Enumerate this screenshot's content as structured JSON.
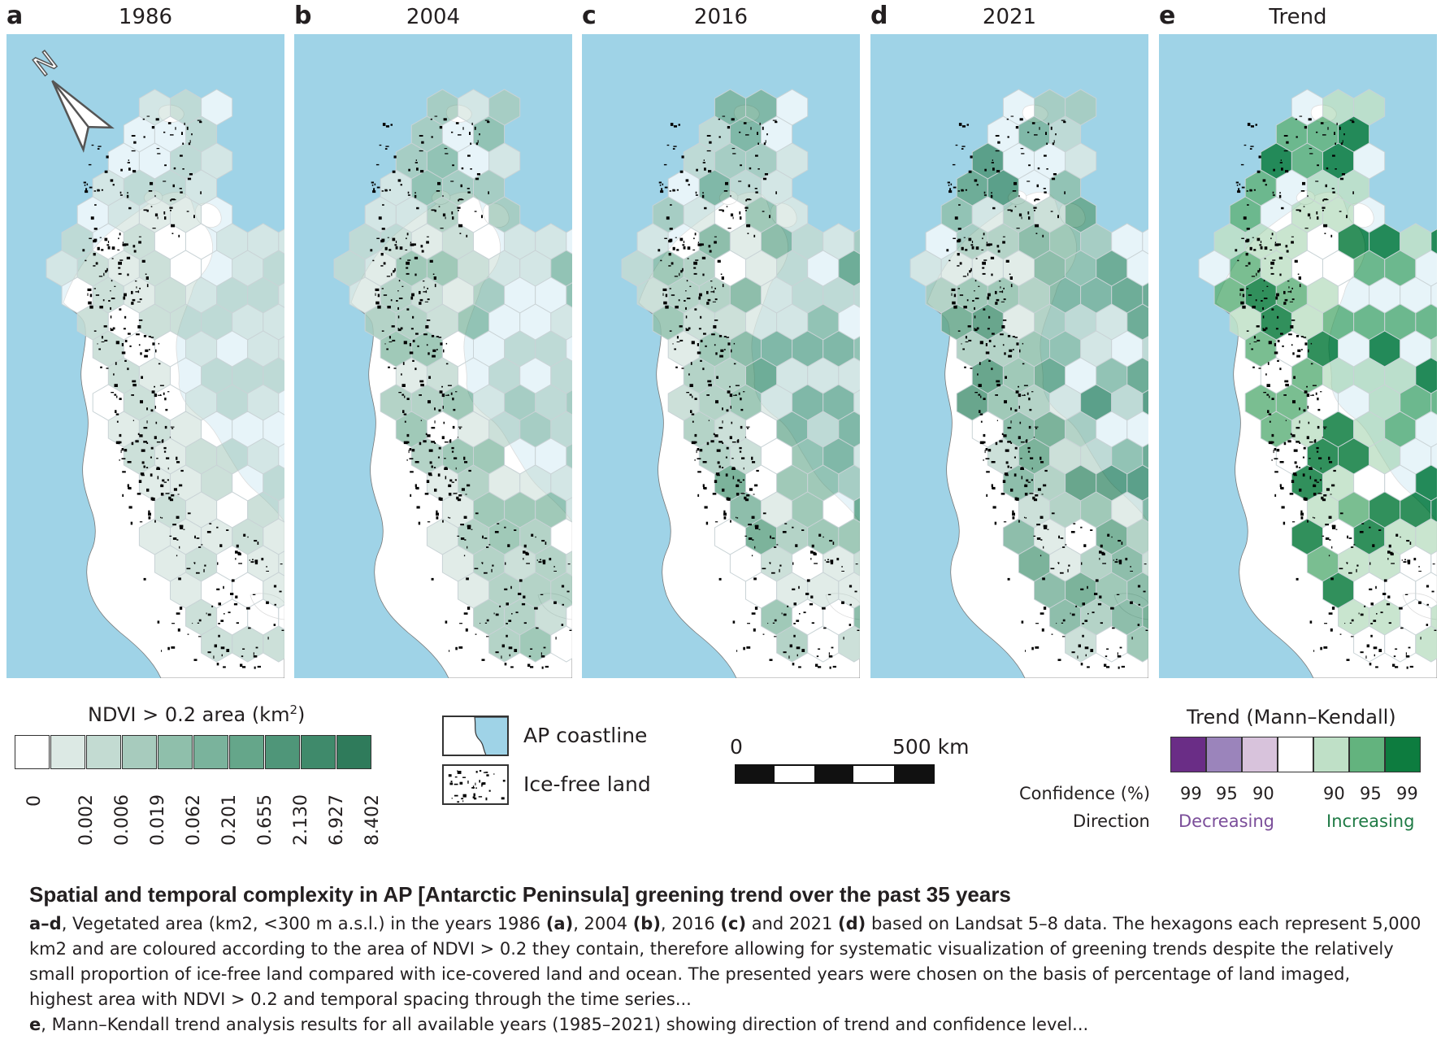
{
  "panels": [
    {
      "letter": "a",
      "year": "1986"
    },
    {
      "letter": "b",
      "year": "2004"
    },
    {
      "letter": "c",
      "year": "2016"
    },
    {
      "letter": "d",
      "year": "2021"
    },
    {
      "letter": "e",
      "year": "Trend"
    }
  ],
  "north_label": "N",
  "colors": {
    "ocean": "#9fd3e7",
    "land": "#ffffff",
    "ice_free": "#000000",
    "hex_outline": "#c9d3d6"
  },
  "ndvi_legend": {
    "title_prefix": "NDVI > 0.2 area (km",
    "title_sup": "2",
    "title_suffix": ")",
    "ticks": [
      "0",
      "0.002",
      "0.006",
      "0.019",
      "0.062",
      "0.201",
      "0.655",
      "2.130",
      "6.927",
      "8.402"
    ],
    "colors": [
      "#ffffff",
      "#dce9e4",
      "#c3dbd2",
      "#a7cbbd",
      "#8fbfab",
      "#7ab39c",
      "#65a68a",
      "#4f9679",
      "#3f8a6b",
      "#2f7b5b"
    ]
  },
  "map_key": {
    "coastline_label": "AP coastline",
    "icefree_label": "Ice-free land"
  },
  "scale_bar": {
    "start": "0",
    "end": "500 km"
  },
  "trend_legend": {
    "title": "Trend (Mann–Kendall)",
    "confidence_label": "Confidence (%)",
    "direction_label": "Direction",
    "decreasing_label": "Decreasing",
    "increasing_label": "Increasing",
    "conf_decreasing": [
      "99",
      "95",
      "90"
    ],
    "conf_increasing": [
      "90",
      "95",
      "99"
    ],
    "colors": [
      "#6a2d86",
      "#9b84bb",
      "#d8c3dc",
      "#ffffff",
      "#bfe0c7",
      "#63b37e",
      "#0d7c3f"
    ],
    "decreasing_color": "#7b4e9a",
    "increasing_color": "#1f7a45"
  },
  "caption": {
    "title": "Spatial and temporal complexity in AP [Antarctic Peninsula] greening trend over the past 35 years",
    "line1_bold": "a–d",
    "line1": ", Vegetated area (km2, <300 m a.s.l.) in the years 1986 ",
    "line1_a": "(a)",
    "line1_b_pre": ", 2004 ",
    "line1_b": "(b)",
    "line1_c_pre": ", 2016 ",
    "line1_c": "(c)",
    "line1_d_pre": " and 2021 ",
    "line1_d": "(d)",
    "line1_end": " based on Landsat 5–8 data. The hexagons each represent 5,000",
    "line2": "km2 and are coloured according to the area of NDVI > 0.2 they contain, therefore allowing for systematic visualization of greening trends despite the relatively",
    "line3": "small proportion of ice-free land compared with ice-covered land and ocean. The presented years were chosen on the basis of percentage of land imaged,",
    "line4": "highest area with NDVI > 0.2 and temporal spacing through the time series...",
    "line5_bold": "e",
    "line5": ", Mann–Kendall trend analysis results for all available years (1985–2021) showing direction of trend and confidence level..."
  }
}
